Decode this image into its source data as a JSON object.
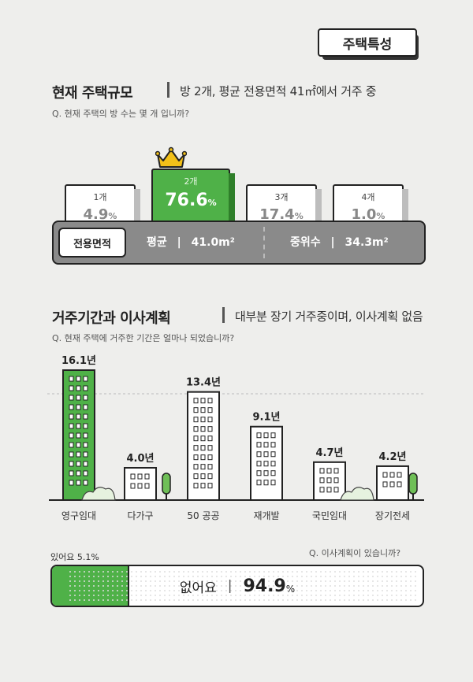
{
  "badge": "주택특성",
  "section1": {
    "title": "현재 주택규모",
    "summary": "방 2개, 평균 전용면적 41㎡에서 거주 중",
    "question": "Q. 현재 주택의 방 수는 몇 개 입니까?"
  },
  "rooms": [
    {
      "label": "1개",
      "pct": "4.9",
      "unit": "%"
    },
    {
      "label": "2개",
      "pct": "76.6",
      "unit": "%"
    },
    {
      "label": "3개",
      "pct": "17.4",
      "unit": "%"
    },
    {
      "label": "4개",
      "pct": "1.0",
      "unit": "%"
    }
  ],
  "area": {
    "chip": "전용면적",
    "avg_label": "평균",
    "avg_value": "41.0m²",
    "median_label": "중위수",
    "median_value": "34.3m²"
  },
  "section2": {
    "title": "거주기간과 이사계획",
    "summary": "대부분 장기 거주중이며, 이사계획 없음",
    "question": "Q. 현재 주택에 거주한 기간은 얼마나 되었습니까?"
  },
  "chart_data": {
    "type": "bar",
    "categories": [
      "영구임대",
      "다가구",
      "50 공공",
      "재개발",
      "국민임대",
      "장기전세"
    ],
    "values": [
      16.1,
      4.0,
      13.4,
      9.1,
      4.7,
      4.2
    ],
    "value_labels": [
      "16.1년",
      "4.0년",
      "13.4년",
      "9.1년",
      "4.7년",
      "4.2년"
    ],
    "highlight_color": "#4fb148",
    "default_color": "#ffffff"
  },
  "plan": {
    "question": "Q. 이사계획이 있습니까?",
    "yes_label": "있어요 5.1%",
    "yes_value": 5.1,
    "no_label": "없어요",
    "no_value": "94.9",
    "no_unit": "%"
  },
  "colors": {
    "accent": "#4fb148",
    "bar_gray": "#8a8a8a",
    "bg": "#eeeeec"
  }
}
